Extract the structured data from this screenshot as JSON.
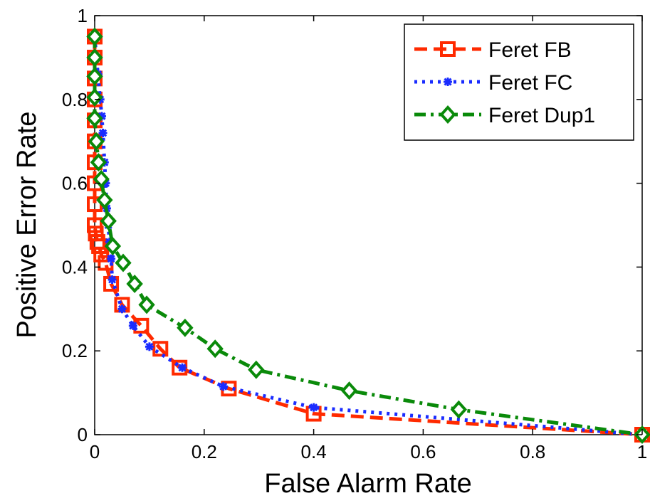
{
  "chart_data": {
    "type": "line",
    "title": "",
    "xlabel": "False Alarm Rate",
    "ylabel": "Positive Error Rate",
    "xlim": [
      0,
      1
    ],
    "ylim": [
      0,
      1
    ],
    "xticks": [
      "0",
      "0.2",
      "0.4",
      "0.6",
      "0.8",
      "1"
    ],
    "yticks": [
      "0",
      "0.2",
      "0.4",
      "0.6",
      "0.8",
      "1"
    ],
    "grid": false,
    "legend_position": "top-right",
    "series": [
      {
        "name": "Feret FB",
        "color": "#ff2a00",
        "line_style": "dashed",
        "marker": "square",
        "x": [
          0,
          0,
          0,
          0,
          0,
          0,
          0,
          0,
          0,
          0,
          0.002,
          0.005,
          0.008,
          0.012,
          0.02,
          0.03,
          0.05,
          0.085,
          0.12,
          0.155,
          0.245,
          0.4,
          1.0
        ],
        "y": [
          0.95,
          0.9,
          0.85,
          0.8,
          0.75,
          0.7,
          0.65,
          0.6,
          0.55,
          0.5,
          0.48,
          0.46,
          0.45,
          0.43,
          0.41,
          0.36,
          0.31,
          0.26,
          0.205,
          0.16,
          0.11,
          0.05,
          0.0
        ]
      },
      {
        "name": "Feret FC",
        "color": "#1a2cff",
        "line_style": "dotted",
        "marker": "asterisk",
        "x": [
          0,
          0.003,
          0.006,
          0.01,
          0.013,
          0.015,
          0.018,
          0.02,
          0.022,
          0.025,
          0.027,
          0.03,
          0.032,
          0.05,
          0.07,
          0.1,
          0.16,
          0.235,
          0.4,
          1.0
        ],
        "y": [
          0.95,
          0.9,
          0.86,
          0.8,
          0.76,
          0.72,
          0.65,
          0.6,
          0.54,
          0.5,
          0.46,
          0.42,
          0.37,
          0.3,
          0.26,
          0.21,
          0.16,
          0.115,
          0.065,
          0.0
        ]
      },
      {
        "name": "Feret Dup1",
        "color": "#0a8a0a",
        "line_style": "dashdot",
        "marker": "diamond",
        "x": [
          0,
          0,
          0,
          0,
          0,
          0.003,
          0.007,
          0.012,
          0.018,
          0.025,
          0.033,
          0.052,
          0.073,
          0.095,
          0.165,
          0.22,
          0.295,
          0.465,
          0.665,
          1.0
        ],
        "y": [
          0.95,
          0.9,
          0.855,
          0.805,
          0.755,
          0.7,
          0.65,
          0.61,
          0.56,
          0.51,
          0.45,
          0.41,
          0.36,
          0.31,
          0.255,
          0.205,
          0.155,
          0.105,
          0.06,
          0.0
        ]
      }
    ]
  }
}
